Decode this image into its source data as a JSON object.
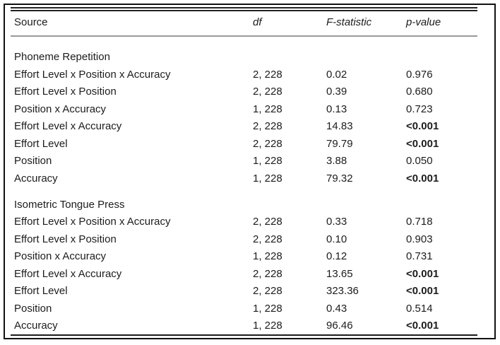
{
  "table": {
    "columns": {
      "source": "Source",
      "df": "df",
      "f": "F-statistic",
      "p": "p-value"
    },
    "colors": {
      "outer_border": "#111111",
      "text": "#1c1c1c",
      "header_rule_gray": "#9a9a9a",
      "top_bottom_rule": "#222222"
    },
    "sections": [
      {
        "title": "Phoneme Repetition",
        "rows": [
          {
            "source": "Effort Level x Position x Accuracy",
            "df": "2, 228",
            "f": "0.02",
            "p": "0.976",
            "p_bold": false
          },
          {
            "source": "Effort Level x Position",
            "df": "2, 228",
            "f": "0.39",
            "p": "0.680",
            "p_bold": false
          },
          {
            "source": "Position x Accuracy",
            "df": "1, 228",
            "f": "0.13",
            "p": "0.723",
            "p_bold": false
          },
          {
            "source": "Effort Level x Accuracy",
            "df": "2, 228",
            "f": "14.83",
            "p": "<0.001",
            "p_bold": true
          },
          {
            "source": "Effort Level",
            "df": "2, 228",
            "f": "79.79",
            "p": "<0.001",
            "p_bold": true
          },
          {
            "source": "Position",
            "df": "1, 228",
            "f": "3.88",
            "p": "0.050",
            "p_bold": false
          },
          {
            "source": "Accuracy",
            "df": "1, 228",
            "f": "79.32",
            "p": "<0.001",
            "p_bold": true
          }
        ]
      },
      {
        "title": "Isometric Tongue Press",
        "rows": [
          {
            "source": "Effort Level x Position x Accuracy",
            "df": "2, 228",
            "f": "0.33",
            "p": "0.718",
            "p_bold": false
          },
          {
            "source": "Effort Level x Position",
            "df": "2, 228",
            "f": "0.10",
            "p": "0.903",
            "p_bold": false
          },
          {
            "source": "Position x Accuracy",
            "df": "1, 228",
            "f": "0.12",
            "p": "0.731",
            "p_bold": false
          },
          {
            "source": "Effort Level x Accuracy",
            "df": "2, 228",
            "f": "13.65",
            "p": "<0.001",
            "p_bold": true
          },
          {
            "source": "Effort Level",
            "df": "2, 228",
            "f": "323.36",
            "p": "<0.001",
            "p_bold": true
          },
          {
            "source": "Position",
            "df": "1, 228",
            "f": "0.43",
            "p": "0.514",
            "p_bold": false
          },
          {
            "source": "Accuracy",
            "df": "1, 228",
            "f": "96.46",
            "p": "<0.001",
            "p_bold": true
          }
        ]
      }
    ]
  }
}
